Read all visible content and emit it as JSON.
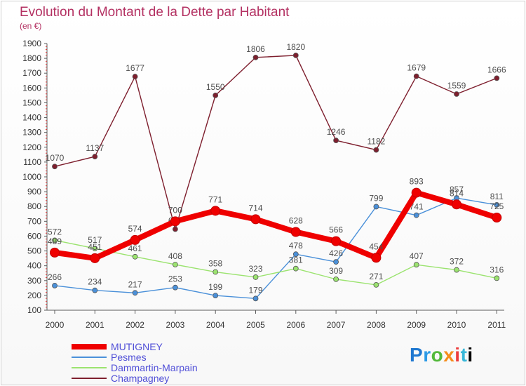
{
  "title": "Evolution du Montant de la Dette par Habitant",
  "subtitle": "(en €)",
  "brand": "Proxiti",
  "chart_data": {
    "type": "line",
    "x": [
      "2000",
      "2001",
      "2002",
      "2003",
      "2004",
      "2005",
      "2006",
      "2007",
      "2008",
      "2009",
      "2010",
      "2011"
    ],
    "ylim": [
      100,
      1900
    ],
    "yticks": [
      100,
      200,
      300,
      400,
      500,
      600,
      700,
      800,
      900,
      1000,
      1100,
      1200,
      1300,
      1400,
      1500,
      1600,
      1700,
      1800,
      1900
    ],
    "legend_position": "bottom-left",
    "grid": false,
    "series": [
      {
        "name": "MUTIGNEY",
        "color": "#ef0000",
        "values": [
          489,
          451,
          574,
          700,
          771,
          714,
          628,
          566,
          454,
          893,
          814,
          725
        ]
      },
      {
        "name": "Pesmes",
        "color": "#4a90d9",
        "values": [
          266,
          234,
          217,
          253,
          199,
          179,
          478,
          426,
          799,
          741,
          857,
          811
        ]
      },
      {
        "name": "Dammartin-Marpain",
        "color": "#9be36f",
        "values": [
          572,
          517,
          461,
          408,
          358,
          323,
          381,
          309,
          271,
          407,
          372,
          316
        ]
      },
      {
        "name": "Champagney",
        "color": "#7e1f2e",
        "values": [
          1070,
          1137,
          1677,
          647,
          1550,
          1806,
          1820,
          1246,
          1182,
          1679,
          1559,
          1666
        ]
      }
    ]
  }
}
